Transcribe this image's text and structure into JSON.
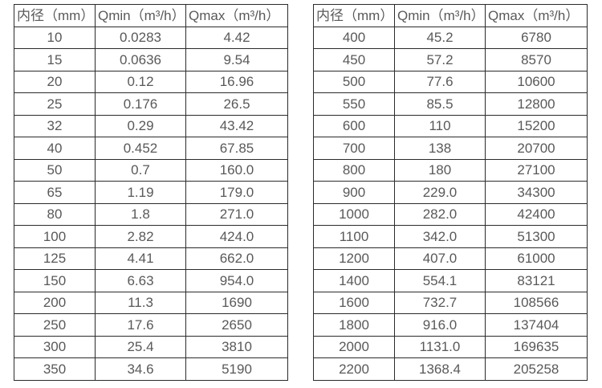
{
  "colors": {
    "background": "#ffffff",
    "border": "#2b2b2b",
    "text": "#595959"
  },
  "headers": [
    "内径（mm）",
    "Qmin（m³/h）",
    "Qmax（m³/h）"
  ],
  "tables": [
    {
      "name": "flow-range-small-diameters",
      "rows": [
        [
          "10",
          "0.0283",
          "4.42"
        ],
        [
          "15",
          "0.0636",
          "9.54"
        ],
        [
          "20",
          "0.12",
          "16.96"
        ],
        [
          "25",
          "0.176",
          "26.5"
        ],
        [
          "32",
          "0.29",
          "43.42"
        ],
        [
          "40",
          "0.452",
          "67.85"
        ],
        [
          "50",
          "0.7",
          "160.0"
        ],
        [
          "65",
          "1.19",
          "179.0"
        ],
        [
          "80",
          "1.8",
          "271.0"
        ],
        [
          "100",
          "2.82",
          "424.0"
        ],
        [
          "125",
          "4.41",
          "662.0"
        ],
        [
          "150",
          "6.63",
          "954.0"
        ],
        [
          "200",
          "11.3",
          "1690"
        ],
        [
          "250",
          "17.6",
          "2650"
        ],
        [
          "300",
          "25.4",
          "3810"
        ],
        [
          "350",
          "34.6",
          "5190"
        ]
      ]
    },
    {
      "name": "flow-range-large-diameters",
      "rows": [
        [
          "400",
          "45.2",
          "6780"
        ],
        [
          "450",
          "57.2",
          "8570"
        ],
        [
          "500",
          "77.6",
          "10600"
        ],
        [
          "550",
          "85.5",
          "12800"
        ],
        [
          "600",
          "110",
          "15200"
        ],
        [
          "700",
          "138",
          "20700"
        ],
        [
          "800",
          "180",
          "27100"
        ],
        [
          "900",
          "229.0",
          "34300"
        ],
        [
          "1000",
          "282.0",
          "42400"
        ],
        [
          "1100",
          "342.0",
          "51300"
        ],
        [
          "1200",
          "407.0",
          "61000"
        ],
        [
          "1400",
          "554.1",
          "83121"
        ],
        [
          "1600",
          "732.7",
          "108566"
        ],
        [
          "1800",
          "916.0",
          "137404"
        ],
        [
          "2000",
          "1131.0",
          "169635"
        ],
        [
          "2200",
          "1368.4",
          "205258"
        ]
      ]
    }
  ]
}
